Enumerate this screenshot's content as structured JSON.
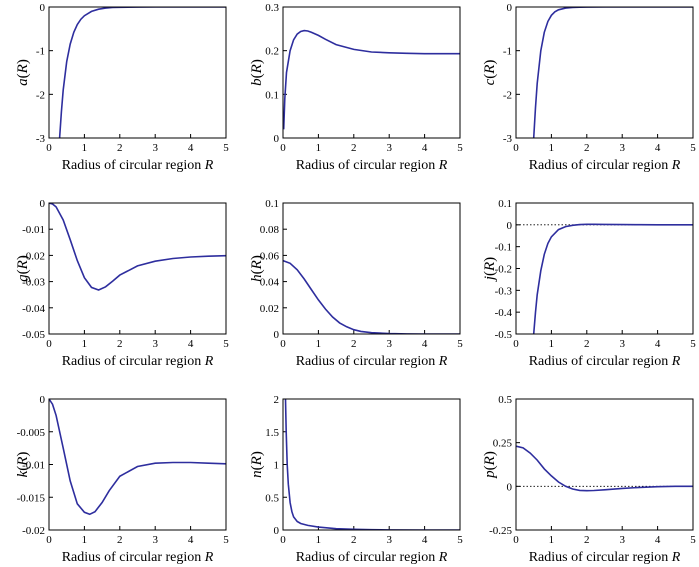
{
  "chart_data": [
    {
      "type": "line",
      "xlabel": "Radius of circular region R",
      "ylabel": "a(R)",
      "xlim": [
        0,
        5
      ],
      "ylim": [
        -3,
        0
      ],
      "xticks": [
        0,
        1,
        2,
        3,
        4,
        5
      ],
      "yticks": [
        0,
        -1,
        -2,
        -3
      ],
      "ytick_labels": [
        "0",
        "-1",
        "-2",
        "-3"
      ],
      "zero_line": false,
      "series": [
        {
          "x": [
            0.3,
            0.35,
            0.4,
            0.5,
            0.6,
            0.7,
            0.8,
            0.9,
            1.0,
            1.2,
            1.4,
            1.6,
            1.8,
            2.0,
            2.5,
            3.0,
            3.5,
            4.0,
            4.5,
            5.0
          ],
          "y": [
            -3.0,
            -2.4,
            -1.9,
            -1.25,
            -0.85,
            -0.58,
            -0.4,
            -0.28,
            -0.2,
            -0.1,
            -0.05,
            -0.025,
            -0.012,
            -0.006,
            -0.002,
            0,
            0,
            0,
            0,
            0
          ]
        }
      ]
    },
    {
      "type": "line",
      "xlabel": "Radius of circular region R",
      "ylabel": "b(R)",
      "xlim": [
        0,
        5
      ],
      "ylim": [
        0,
        0.3
      ],
      "xticks": [
        0,
        1,
        2,
        3,
        4,
        5
      ],
      "yticks": [
        0,
        0.1,
        0.2,
        0.3
      ],
      "ytick_labels": [
        "0",
        "0.1",
        "0.2",
        "0.3"
      ],
      "zero_line": false,
      "series": [
        {
          "x": [
            0.02,
            0.05,
            0.1,
            0.2,
            0.3,
            0.4,
            0.5,
            0.6,
            0.7,
            0.8,
            1.0,
            1.2,
            1.5,
            2.0,
            2.5,
            3.0,
            3.5,
            4.0,
            4.5,
            5.0
          ],
          "y": [
            0.02,
            0.09,
            0.15,
            0.2,
            0.225,
            0.238,
            0.244,
            0.246,
            0.245,
            0.242,
            0.235,
            0.226,
            0.214,
            0.203,
            0.197,
            0.195,
            0.194,
            0.193,
            0.193,
            0.193
          ]
        }
      ]
    },
    {
      "type": "line",
      "xlabel": "Radius of circular region R",
      "ylabel": "c(R)",
      "xlim": [
        0,
        5
      ],
      "ylim": [
        -3,
        0
      ],
      "xticks": [
        0,
        1,
        2,
        3,
        4,
        5
      ],
      "yticks": [
        0,
        -1,
        -2,
        -3
      ],
      "ytick_labels": [
        "0",
        "-1",
        "-2",
        "-3"
      ],
      "zero_line": false,
      "series": [
        {
          "x": [
            0.5,
            0.55,
            0.6,
            0.7,
            0.8,
            0.9,
            1.0,
            1.1,
            1.2,
            1.4,
            1.6,
            1.8,
            2.0,
            2.5,
            3.0,
            3.5,
            4.0,
            4.5,
            5.0
          ],
          "y": [
            -3.0,
            -2.3,
            -1.75,
            -1.0,
            -0.58,
            -0.33,
            -0.19,
            -0.11,
            -0.065,
            -0.025,
            -0.01,
            -0.004,
            -0.002,
            0,
            0,
            0,
            0,
            0,
            0
          ]
        }
      ]
    },
    {
      "type": "line",
      "xlabel": "Radius of circular region R",
      "ylabel": "g(R)",
      "xlim": [
        0,
        5
      ],
      "ylim": [
        -0.05,
        0
      ],
      "xticks": [
        0,
        1,
        2,
        3,
        4,
        5
      ],
      "yticks": [
        0,
        -0.01,
        -0.02,
        -0.03,
        -0.04,
        -0.05
      ],
      "ytick_labels": [
        "0",
        "-0.01",
        "-0.02",
        "-0.03",
        "-0.04",
        "-0.05"
      ],
      "zero_line": false,
      "series": [
        {
          "x": [
            0.0,
            0.1,
            0.2,
            0.4,
            0.6,
            0.8,
            1.0,
            1.2,
            1.4,
            1.6,
            1.8,
            2.0,
            2.5,
            3.0,
            3.5,
            4.0,
            4.5,
            5.0
          ],
          "y": [
            0.0,
            -0.0004,
            -0.0015,
            -0.0065,
            -0.014,
            -0.022,
            -0.0285,
            -0.0322,
            -0.0332,
            -0.032,
            -0.0298,
            -0.0275,
            -0.024,
            -0.0222,
            -0.0212,
            -0.0206,
            -0.0203,
            -0.0201
          ]
        }
      ]
    },
    {
      "type": "line",
      "xlabel": "Radius of circular region R",
      "ylabel": "h(R)",
      "xlim": [
        0,
        5
      ],
      "ylim": [
        0,
        0.1
      ],
      "xticks": [
        0,
        1,
        2,
        3,
        4,
        5
      ],
      "yticks": [
        0,
        0.02,
        0.04,
        0.06,
        0.08,
        0.1
      ],
      "ytick_labels": [
        "0",
        "0.02",
        "0.04",
        "0.06",
        "0.08",
        "0.1"
      ],
      "zero_line": false,
      "series": [
        {
          "x": [
            0.0,
            0.2,
            0.4,
            0.6,
            0.8,
            1.0,
            1.2,
            1.4,
            1.6,
            1.8,
            2.0,
            2.2,
            2.5,
            3.0,
            3.5,
            4.0,
            4.5,
            5.0
          ],
          "y": [
            0.056,
            0.054,
            0.049,
            0.042,
            0.034,
            0.026,
            0.019,
            0.013,
            0.0085,
            0.0055,
            0.0033,
            0.002,
            0.001,
            0.0003,
            0.0001,
            0,
            0,
            0
          ]
        }
      ]
    },
    {
      "type": "line",
      "xlabel": "Radius of circular region R",
      "ylabel": "j(R)",
      "xlim": [
        0,
        5
      ],
      "ylim": [
        -0.5,
        0.1
      ],
      "xticks": [
        0,
        1,
        2,
        3,
        4,
        5
      ],
      "yticks": [
        0.1,
        0,
        -0.1,
        -0.2,
        -0.3,
        -0.4,
        -0.5
      ],
      "ytick_labels": [
        "0.1",
        "0",
        "-0.1",
        "-0.2",
        "-0.3",
        "-0.4",
        "-0.5"
      ],
      "zero_line": true,
      "series": [
        {
          "x": [
            0.5,
            0.55,
            0.6,
            0.7,
            0.8,
            0.9,
            1.0,
            1.2,
            1.4,
            1.6,
            1.8,
            2.0,
            2.2,
            2.5,
            3.0,
            3.5,
            4.0,
            4.5,
            5.0
          ],
          "y": [
            -0.5,
            -0.4,
            -0.32,
            -0.21,
            -0.135,
            -0.085,
            -0.055,
            -0.022,
            -0.008,
            -0.002,
            0.001,
            0.0025,
            0.0025,
            0.002,
            0.001,
            0.0005,
            0,
            0,
            0
          ]
        }
      ]
    },
    {
      "type": "line",
      "xlabel": "Radius of circular region R",
      "ylabel": "k(R)",
      "xlim": [
        0,
        5
      ],
      "ylim": [
        -0.02,
        0
      ],
      "xticks": [
        0,
        1,
        2,
        3,
        4,
        5
      ],
      "yticks": [
        0,
        -0.005,
        -0.01,
        -0.015,
        -0.02
      ],
      "ytick_labels": [
        "0",
        "-0.005",
        "-0.01",
        "-0.015",
        "-0.02"
      ],
      "zero_line": false,
      "series": [
        {
          "x": [
            0.0,
            0.1,
            0.2,
            0.4,
            0.6,
            0.8,
            1.0,
            1.15,
            1.3,
            1.5,
            1.7,
            2.0,
            2.5,
            3.0,
            3.5,
            4.0,
            4.5,
            5.0
          ],
          "y": [
            0.0,
            -0.0008,
            -0.0025,
            -0.0075,
            -0.0125,
            -0.016,
            -0.0173,
            -0.0176,
            -0.0172,
            -0.0158,
            -0.014,
            -0.0118,
            -0.0103,
            -0.0098,
            -0.0097,
            -0.0097,
            -0.0098,
            -0.0099
          ]
        }
      ]
    },
    {
      "type": "line",
      "xlabel": "Radius of circular region R",
      "ylabel": "n(R)",
      "xlim": [
        0,
        5
      ],
      "ylim": [
        0,
        2
      ],
      "xticks": [
        0,
        1,
        2,
        3,
        4,
        5
      ],
      "yticks": [
        0,
        0.5,
        1,
        1.5,
        2
      ],
      "ytick_labels": [
        "0",
        "0.5",
        "1",
        "1.5",
        "2"
      ],
      "zero_line": false,
      "series": [
        {
          "x": [
            0.07,
            0.09,
            0.12,
            0.15,
            0.2,
            0.25,
            0.3,
            0.4,
            0.5,
            0.7,
            1.0,
            1.5,
            2.0,
            2.5,
            3.0,
            4.0,
            5.0
          ],
          "y": [
            2.0,
            1.5,
            1.0,
            0.7,
            0.42,
            0.28,
            0.2,
            0.13,
            0.1,
            0.07,
            0.045,
            0.02,
            0.01,
            0.005,
            0.002,
            0,
            0
          ]
        }
      ]
    },
    {
      "type": "line",
      "xlabel": "Radius of circular region R",
      "ylabel": "p(R)",
      "xlim": [
        0,
        5
      ],
      "ylim": [
        -0.25,
        0.5
      ],
      "xticks": [
        0,
        1,
        2,
        3,
        4,
        5
      ],
      "yticks": [
        0.5,
        0.25,
        0,
        -0.25
      ],
      "ytick_labels": [
        "0.5",
        "0.25",
        "0",
        "-0.25"
      ],
      "zero_line": true,
      "series": [
        {
          "x": [
            0.0,
            0.2,
            0.4,
            0.6,
            0.8,
            1.0,
            1.2,
            1.4,
            1.6,
            1.8,
            2.0,
            2.2,
            2.5,
            3.0,
            3.5,
            4.0,
            4.5,
            5.0
          ],
          "y": [
            0.23,
            0.22,
            0.19,
            0.15,
            0.1,
            0.06,
            0.025,
            0.0,
            -0.015,
            -0.023,
            -0.025,
            -0.024,
            -0.02,
            -0.012,
            -0.006,
            -0.002,
            0,
            0
          ]
        }
      ]
    }
  ]
}
